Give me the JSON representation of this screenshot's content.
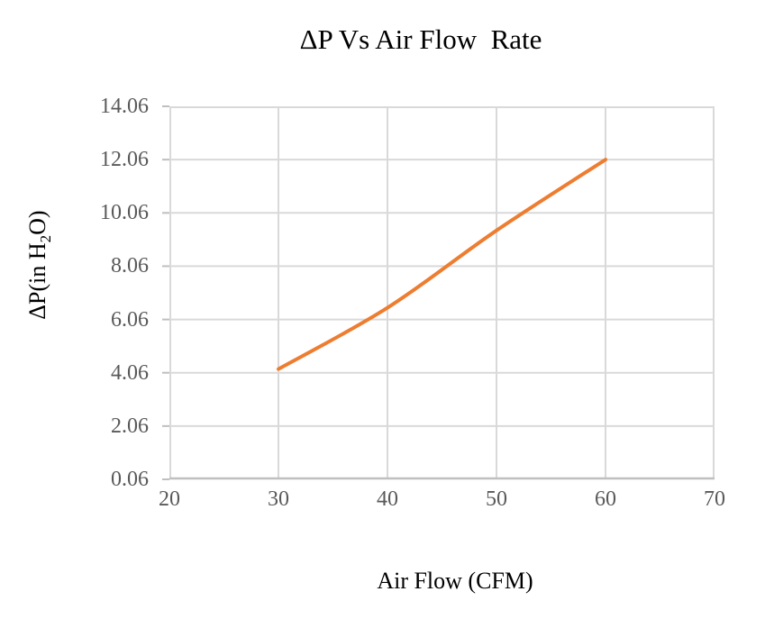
{
  "page": {
    "background": "#FFFFFF"
  },
  "chart_data": {
    "type": "line",
    "title": "ΔP Vs Air Flow  Rate",
    "xlabel": "Air Flow (CFM)",
    "ylabel": "ΔP(in H₂O)",
    "ylabel_parts": {
      "prefix": "ΔP(in H",
      "sub": "2",
      "suffix": "O)"
    },
    "x": [
      30,
      40,
      50,
      60
    ],
    "y": [
      4.2,
      6.5,
      9.4,
      12.06
    ],
    "xlim": [
      20,
      70
    ],
    "ylim": [
      0.06,
      14.06
    ],
    "x_tick_labels": [
      "20",
      "30",
      "40",
      "50",
      "60",
      "70"
    ],
    "y_tick_labels": [
      "0.06",
      "2.06",
      "4.06",
      "6.06",
      "8.06",
      "10.06",
      "12.06",
      "14.06"
    ],
    "grid": true,
    "legend": false,
    "smooth": true,
    "line_color": "#ED7D31"
  },
  "colors": {
    "gridline": "#D9D9D9",
    "axis_line": "#BFBFBF",
    "tick_label": "#595959",
    "title_text": "#000000"
  }
}
